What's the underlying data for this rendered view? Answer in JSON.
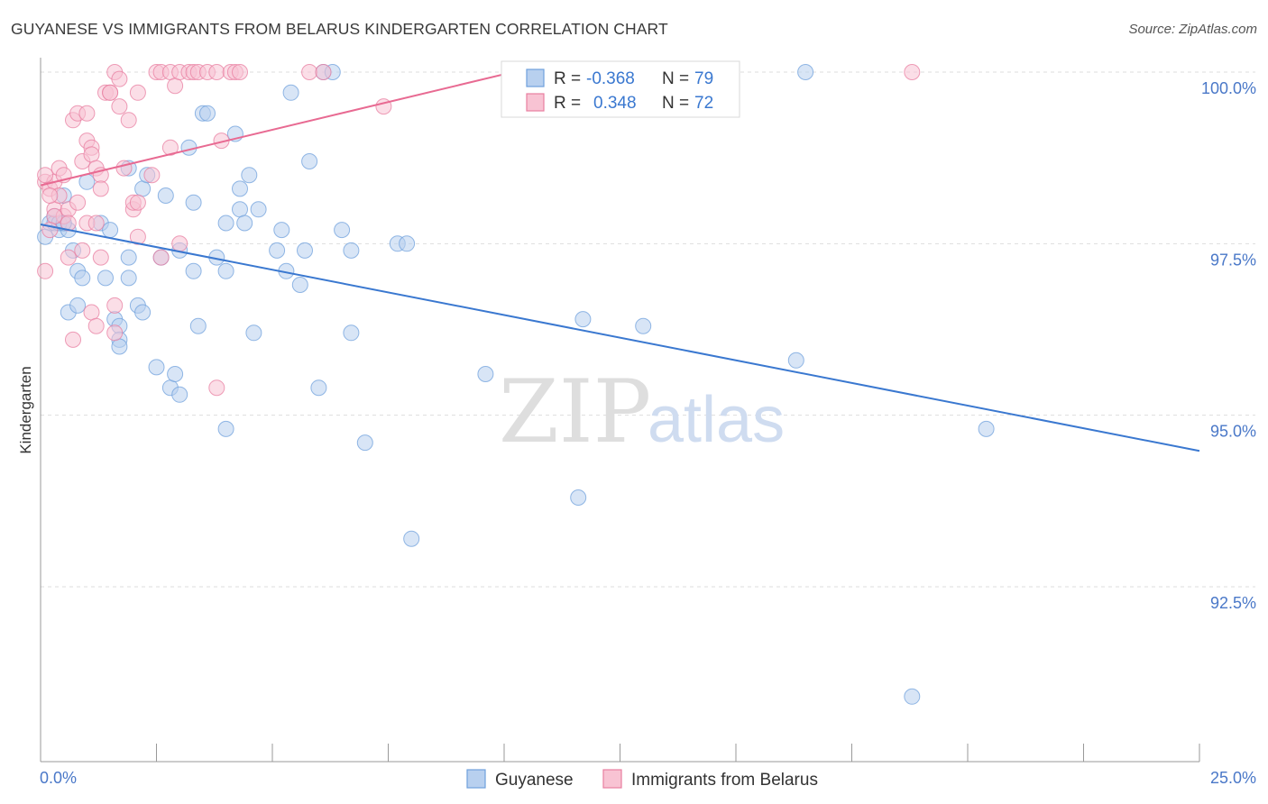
{
  "chart_data": {
    "type": "scatter",
    "title": "GUYANESE VS IMMIGRANTS FROM BELARUS KINDERGARTEN CORRELATION CHART",
    "source": "Source: ZipAtlas.com",
    "xlabel": "",
    "ylabel": "Kindergarten",
    "xlim": [
      0,
      25
    ],
    "ylim": [
      90.2,
      100.4
    ],
    "x_tick_labels": [
      "0.0%",
      "25.0%"
    ],
    "y_ticks": [
      {
        "value": 100.0,
        "label": "100.0%"
      },
      {
        "value": 97.5,
        "label": "97.5%"
      },
      {
        "value": 95.0,
        "label": "95.0%"
      },
      {
        "value": 92.5,
        "label": "92.5%"
      }
    ],
    "watermark": {
      "zip": "ZIP",
      "atlas": "atlas"
    },
    "legend_stats": [
      {
        "r_label": "R =",
        "r_value": "-0.368",
        "n_label": "N =",
        "n_value": "79",
        "color": "#6fa0dc",
        "fill": "#b8d0ef"
      },
      {
        "r_label": "R =",
        "r_value": "0.348",
        "n_label": "N =",
        "n_value": "72",
        "color": "#e87ea0",
        "fill": "#f8c3d3"
      }
    ],
    "series": [
      {
        "name": "Guyanese",
        "color": "#6fa0dc",
        "fill": "#b8d0ef",
        "trend": {
          "x": [
            0,
            25
          ],
          "y": [
            97.78,
            94.48
          ],
          "color": "#3a78d0"
        },
        "points": [
          [
            0.3,
            97.9
          ],
          [
            0.4,
            97.7
          ],
          [
            0.5,
            97.8
          ],
          [
            0.6,
            97.7
          ],
          [
            0.5,
            98.2
          ],
          [
            0.7,
            97.4
          ],
          [
            0.8,
            97.1
          ],
          [
            0.9,
            97.0
          ],
          [
            0.6,
            96.5
          ],
          [
            0.8,
            96.6
          ],
          [
            1.0,
            98.4
          ],
          [
            1.3,
            97.8
          ],
          [
            1.5,
            97.7
          ],
          [
            1.4,
            97.0
          ],
          [
            1.6,
            96.4
          ],
          [
            1.7,
            96.3
          ],
          [
            1.7,
            96.1
          ],
          [
            1.7,
            96.0
          ],
          [
            1.9,
            98.6
          ],
          [
            1.9,
            97.3
          ],
          [
            1.9,
            97.0
          ],
          [
            2.1,
            96.6
          ],
          [
            2.2,
            96.5
          ],
          [
            2.2,
            98.3
          ],
          [
            2.3,
            98.5
          ],
          [
            2.5,
            95.7
          ],
          [
            2.6,
            97.3
          ],
          [
            2.7,
            98.2
          ],
          [
            2.8,
            95.4
          ],
          [
            2.9,
            95.6
          ],
          [
            3.0,
            95.3
          ],
          [
            3.0,
            97.4
          ],
          [
            3.2,
            98.9
          ],
          [
            3.3,
            97.1
          ],
          [
            3.3,
            98.1
          ],
          [
            3.4,
            96.3
          ],
          [
            3.5,
            99.4
          ],
          [
            3.6,
            99.4
          ],
          [
            3.8,
            97.3
          ],
          [
            4.0,
            97.8
          ],
          [
            4.0,
            97.1
          ],
          [
            4.0,
            94.8
          ],
          [
            4.2,
            99.1
          ],
          [
            4.3,
            98.0
          ],
          [
            4.3,
            98.3
          ],
          [
            4.4,
            97.8
          ],
          [
            4.5,
            98.5
          ],
          [
            4.6,
            96.2
          ],
          [
            4.7,
            98.0
          ],
          [
            5.1,
            97.4
          ],
          [
            5.2,
            97.7
          ],
          [
            5.3,
            97.1
          ],
          [
            5.4,
            99.7
          ],
          [
            5.6,
            96.9
          ],
          [
            5.7,
            97.4
          ],
          [
            5.8,
            98.7
          ],
          [
            6.0,
            95.4
          ],
          [
            6.1,
            100.0
          ],
          [
            6.3,
            100.0
          ],
          [
            6.5,
            97.7
          ],
          [
            6.7,
            97.4
          ],
          [
            6.7,
            96.2
          ],
          [
            7.0,
            94.6
          ],
          [
            7.7,
            97.5
          ],
          [
            7.9,
            97.5
          ],
          [
            8.0,
            93.2
          ],
          [
            9.6,
            95.6
          ],
          [
            11.6,
            93.8
          ],
          [
            11.7,
            96.4
          ],
          [
            13.0,
            96.3
          ],
          [
            16.3,
            95.8
          ],
          [
            16.5,
            100.0
          ],
          [
            20.4,
            94.8
          ],
          [
            18.8,
            90.9
          ],
          [
            0.2,
            97.8
          ],
          [
            0.3,
            97.8
          ],
          [
            0.4,
            97.8
          ],
          [
            0.5,
            97.8
          ],
          [
            0.1,
            97.6
          ]
        ]
      },
      {
        "name": "Immigrants from Belarus",
        "color": "#e87ea0",
        "fill": "#f8c3d3",
        "trend": {
          "x": [
            0,
            10.5
          ],
          "y": [
            98.35,
            100.05
          ],
          "color": "#e86a92"
        },
        "points": [
          [
            0.1,
            98.4
          ],
          [
            0.2,
            98.3
          ],
          [
            0.3,
            98.4
          ],
          [
            0.3,
            98.0
          ],
          [
            0.4,
            98.6
          ],
          [
            0.4,
            98.2
          ],
          [
            0.5,
            98.5
          ],
          [
            0.5,
            97.9
          ],
          [
            0.6,
            98.0
          ],
          [
            0.6,
            97.8
          ],
          [
            0.6,
            97.3
          ],
          [
            0.7,
            99.3
          ],
          [
            0.8,
            99.4
          ],
          [
            0.8,
            98.1
          ],
          [
            0.9,
            98.7
          ],
          [
            0.9,
            97.4
          ],
          [
            1.0,
            99.4
          ],
          [
            1.0,
            99.0
          ],
          [
            1.0,
            97.8
          ],
          [
            1.1,
            98.9
          ],
          [
            1.1,
            98.8
          ],
          [
            1.2,
            98.6
          ],
          [
            1.2,
            97.8
          ],
          [
            1.3,
            98.5
          ],
          [
            1.3,
            98.3
          ],
          [
            1.3,
            97.3
          ],
          [
            1.4,
            99.7
          ],
          [
            1.5,
            99.7
          ],
          [
            1.5,
            99.7
          ],
          [
            1.6,
            100.0
          ],
          [
            1.7,
            99.5
          ],
          [
            1.7,
            99.9
          ],
          [
            1.8,
            98.6
          ],
          [
            1.9,
            99.3
          ],
          [
            2.0,
            98.0
          ],
          [
            2.0,
            98.1
          ],
          [
            2.1,
            97.6
          ],
          [
            2.1,
            98.1
          ],
          [
            2.1,
            99.7
          ],
          [
            2.4,
            98.5
          ],
          [
            2.5,
            100.0
          ],
          [
            2.6,
            100.0
          ],
          [
            2.6,
            97.3
          ],
          [
            2.8,
            100.0
          ],
          [
            2.8,
            98.9
          ],
          [
            2.9,
            99.8
          ],
          [
            3.0,
            100.0
          ],
          [
            3.0,
            97.5
          ],
          [
            3.2,
            100.0
          ],
          [
            3.3,
            100.0
          ],
          [
            3.4,
            100.0
          ],
          [
            3.6,
            100.0
          ],
          [
            3.8,
            100.0
          ],
          [
            3.8,
            95.4
          ],
          [
            3.9,
            99.0
          ],
          [
            4.1,
            100.0
          ],
          [
            4.2,
            100.0
          ],
          [
            4.3,
            100.0
          ],
          [
            5.8,
            100.0
          ],
          [
            6.1,
            100.0
          ],
          [
            7.4,
            99.5
          ],
          [
            18.8,
            100.0
          ],
          [
            0.1,
            98.5
          ],
          [
            0.2,
            98.2
          ],
          [
            0.3,
            97.9
          ],
          [
            0.7,
            96.1
          ],
          [
            1.1,
            96.5
          ],
          [
            1.2,
            96.3
          ],
          [
            1.6,
            96.2
          ],
          [
            1.6,
            96.6
          ],
          [
            0.1,
            97.1
          ],
          [
            0.2,
            97.7
          ]
        ]
      }
    ]
  }
}
